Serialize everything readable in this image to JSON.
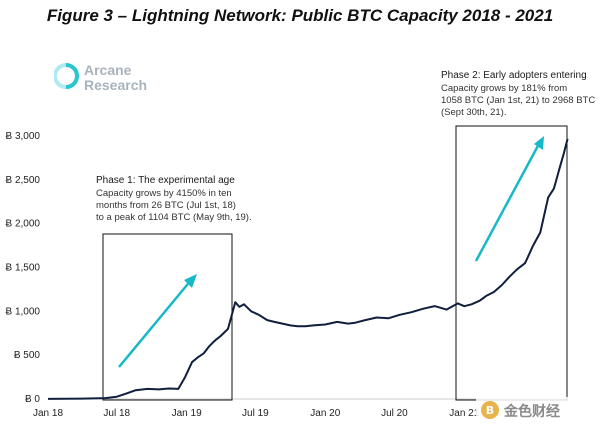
{
  "title": "Figure 3 – Lightning Network: Public BTC Capacity 2018 - 2021",
  "logo": {
    "line1": "Arcane",
    "line2": "Research"
  },
  "colors": {
    "line": "#0f1f3d",
    "arrow": "#17b8c8",
    "box": "#111111",
    "axis": "#999999"
  },
  "annotations": {
    "phase1": {
      "title": "Phase 1: The experimental age",
      "lines": [
        "Capacity grows by 4150% in ten",
        "months from 26 BTC (Jul 1st, 18)",
        "to a peak of 1104 BTC (May 9th, 19)."
      ]
    },
    "phase2": {
      "title": "Phase 2: Early adopters entering",
      "lines": [
        "Capacity grows by 181% from",
        "1058 BTC (Jan 1st, 21) to 2968 BTC",
        "(Sept 30th, 21)."
      ]
    }
  },
  "watermark": {
    "text": "金色财经",
    "icon": "bitcoin-coin-icon"
  },
  "chart_data": {
    "type": "line",
    "title": "Figure 3 – Lightning Network: Public BTC Capacity 2018 - 2021",
    "xlabel": "",
    "ylabel": "",
    "ylim": [
      0,
      3000
    ],
    "xlim": [
      "2018-01-01",
      "2021-10-01"
    ],
    "y_ticks": [
      0,
      500,
      1000,
      1500,
      2000,
      2500,
      3000
    ],
    "y_tick_labels": [
      "Ƀ 0",
      "Ƀ 500",
      "Ƀ 1,000",
      "Ƀ 1,500",
      "Ƀ 2,000",
      "Ƀ 2,500",
      "Ƀ 3,000"
    ],
    "x_ticks": [
      "2018-01-01",
      "2018-07-01",
      "2019-01-01",
      "2019-07-01",
      "2020-01-01",
      "2020-07-01",
      "2021-01-01"
    ],
    "x_tick_labels": [
      "Jan 18",
      "Jul 18",
      "Jan 19",
      "Jul 19",
      "Jan 20",
      "Jul 20",
      "Jan 21"
    ],
    "grid": false,
    "series": [
      {
        "x": [
          "2018-01-01",
          "2018-02-15",
          "2018-04-01",
          "2018-06-01",
          "2018-07-01",
          "2018-07-25",
          "2018-08-20",
          "2018-09-20",
          "2018-10-20",
          "2018-11-15",
          "2018-12-10",
          "2018-12-28",
          "2019-01-15",
          "2019-02-01",
          "2019-02-15",
          "2019-03-01",
          "2019-03-10",
          "2019-03-20",
          "2019-04-01",
          "2019-04-20",
          "2019-05-09",
          "2019-05-20",
          "2019-06-01",
          "2019-06-20",
          "2019-07-10",
          "2019-08-01",
          "2019-08-20",
          "2019-09-10",
          "2019-10-01",
          "2019-10-20",
          "2019-11-10",
          "2019-12-01",
          "2020-01-01",
          "2020-02-01",
          "2020-03-01",
          "2020-03-20",
          "2020-04-15",
          "2020-05-15",
          "2020-06-15",
          "2020-07-15",
          "2020-08-15",
          "2020-09-15",
          "2020-10-15",
          "2020-11-15",
          "2020-12-15",
          "2021-01-01",
          "2021-01-20",
          "2021-02-10",
          "2021-03-01",
          "2021-03-20",
          "2021-04-10",
          "2021-05-01",
          "2021-05-20",
          "2021-06-10",
          "2021-07-01",
          "2021-07-20",
          "2021-08-10",
          "2021-08-25",
          "2021-09-10",
          "2021-09-20",
          "2021-09-30"
        ],
        "values": [
          1,
          3,
          5,
          10,
          26,
          60,
          100,
          115,
          110,
          120,
          115,
          250,
          420,
          480,
          520,
          600,
          640,
          680,
          720,
          800,
          1104,
          1050,
          1080,
          1000,
          960,
          900,
          880,
          860,
          840,
          830,
          830,
          840,
          850,
          880,
          860,
          870,
          900,
          930,
          920,
          960,
          990,
          1030,
          1060,
          1020,
          1090,
          1058,
          1080,
          1120,
          1180,
          1220,
          1300,
          1400,
          1480,
          1550,
          1750,
          1900,
          2300,
          2400,
          2650,
          2800,
          2968
        ]
      }
    ]
  }
}
